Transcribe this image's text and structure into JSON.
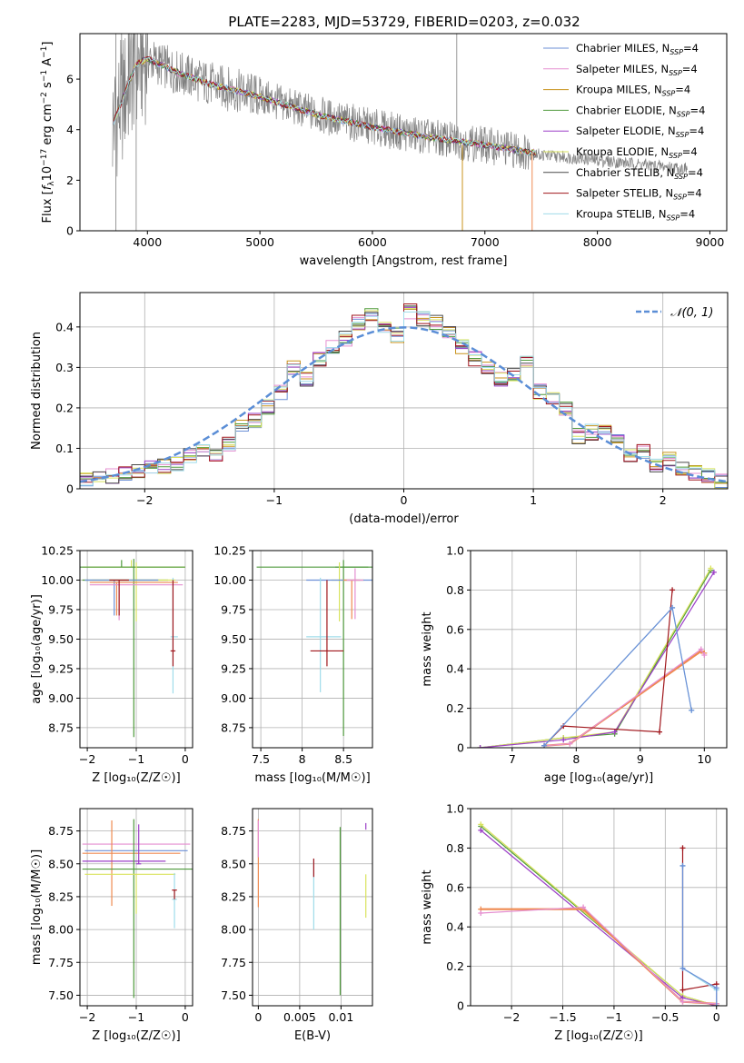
{
  "figure": {
    "title": "PLATE=2283, MJD=53729, FIBERID=0203, z=0.032"
  },
  "colors": {
    "Chabrier MILES": "#6b8fd6",
    "Salpeter MILES": "#e58fd0",
    "Kroupa MILES": "#c8931c",
    "Chabrier ELODIE": "#4f9a3c",
    "Salpeter ELODIE": "#9b3fc7",
    "Kroupa ELODIE": "#d9e35e",
    "Chabrier STELIB": "#4a4a4a",
    "Salpeter STELIB": "#a0161c",
    "Kroupa STELIB": "#9fdcea",
    "data": "#808080",
    "normal": "#5b8ed6",
    "orange_fit": "#ef8a50"
  },
  "chart_data": [
    {
      "id": "spectrum",
      "type": "line",
      "xlabel": "wavelength [Angstrom, rest frame]",
      "ylabel": "Flux [f_λ10⁻¹⁷ erg cm⁻² s⁻¹ A⁻¹]",
      "ylabel_parts": {
        "pre": "Flux [",
        "f": "f",
        "sub": "λ",
        "mid": "10",
        "e1": "−17",
        "erg": " erg cm",
        "e2": "−2",
        "s": " s",
        "e3": "−1",
        "A": " A",
        "e4": "−1",
        "post": "]"
      },
      "xlim": [
        3400,
        9150
      ],
      "ylim": [
        0,
        7.8
      ],
      "xticks": [
        4000,
        5000,
        6000,
        7000,
        8000,
        9000
      ],
      "yticks": [
        0,
        2,
        4,
        6
      ],
      "continuum": {
        "x": [
          3700,
          3900,
          4000,
          4300,
          4600,
          5000,
          5500,
          6000,
          6500,
          7000,
          7400
        ],
        "y": [
          4.3,
          6.6,
          6.8,
          6.2,
          5.75,
          5.3,
          4.6,
          4.1,
          3.7,
          3.4,
          3.1
        ]
      },
      "legend": [
        {
          "label": "Chabrier MILES, N",
          "sub": "SSP",
          "eq": "=4"
        },
        {
          "label": "Salpeter MILES, N",
          "sub": "SSP",
          "eq": "=4"
        },
        {
          "label": "Kroupa MILES, N",
          "sub": "SSP",
          "eq": "=4"
        },
        {
          "label": "Chabrier ELODIE, N",
          "sub": "SSP",
          "eq": "=4"
        },
        {
          "label": "Salpeter ELODIE, N",
          "sub": "SSP",
          "eq": "=4"
        },
        {
          "label": "Kroupa ELODIE, N",
          "sub": "SSP",
          "eq": "=4"
        },
        {
          "label": "Chabrier STELIB, N",
          "sub": "SSP",
          "eq": "=4"
        },
        {
          "label": "Salpeter STELIB, N",
          "sub": "SSP",
          "eq": "=4"
        },
        {
          "label": "Kroupa STELIB, N",
          "sub": "SSP",
          "eq": "=4"
        }
      ],
      "legend_placement": "top-right"
    },
    {
      "id": "residuals",
      "type": "line",
      "xlabel": "(data-model)/error",
      "ylabel": "Normed distribution",
      "xlim": [
        -2.5,
        2.5
      ],
      "ylim": [
        0,
        0.485
      ],
      "xticks": [
        -2,
        -1,
        0,
        1,
        2
      ],
      "yticks": [
        0.0,
        0.1,
        0.2,
        0.3,
        0.4
      ],
      "grid": true,
      "bins": [
        -2.5,
        -2.4,
        -2.3,
        -2.2,
        -2.1,
        -2.0,
        -1.9,
        -1.8,
        -1.7,
        -1.6,
        -1.5,
        -1.4,
        -1.3,
        -1.2,
        -1.1,
        -1.0,
        -0.9,
        -0.8,
        -0.7,
        -0.6,
        -0.5,
        -0.4,
        -0.3,
        -0.2,
        -0.1,
        0.0,
        0.1,
        0.2,
        0.3,
        0.4,
        0.5,
        0.6,
        0.7,
        0.8,
        0.9,
        1.0,
        1.1,
        1.2,
        1.3,
        1.4,
        1.5,
        1.6,
        1.7,
        1.8,
        1.9,
        2.0,
        2.1,
        2.2,
        2.3,
        2.4
      ],
      "hist": [
        0.02,
        0.03,
        0.03,
        0.035,
        0.04,
        0.05,
        0.055,
        0.06,
        0.08,
        0.09,
        0.085,
        0.11,
        0.16,
        0.17,
        0.2,
        0.24,
        0.3,
        0.27,
        0.32,
        0.35,
        0.37,
        0.41,
        0.43,
        0.4,
        0.38,
        0.44,
        0.42,
        0.41,
        0.39,
        0.35,
        0.32,
        0.3,
        0.27,
        0.28,
        0.32,
        0.24,
        0.22,
        0.2,
        0.13,
        0.14,
        0.15,
        0.12,
        0.08,
        0.09,
        0.06,
        0.07,
        0.05,
        0.04,
        0.03,
        0.02
      ],
      "normal_label": "𝒩(0, 1)"
    },
    {
      "id": "age-vs-Z",
      "type": "scatter",
      "xlabel": "Z [log₁₀(Z/Z☉)]",
      "ylabel": "age  [log₁₀(age/yr)]",
      "xlim": [
        -2.15,
        0.15
      ],
      "ylim": [
        8.58,
        10.25
      ],
      "xticks": [
        -2,
        -1,
        0
      ],
      "yticks": [
        8.75,
        9.0,
        9.25,
        9.5,
        9.75,
        10.0,
        10.25
      ]
    },
    {
      "id": "age-vs-mass",
      "type": "scatter",
      "xlabel": "mass [log₁₀(M/M☉)]",
      "ylabel": "",
      "xlim": [
        7.4,
        8.85
      ],
      "ylim": [
        8.58,
        10.25
      ],
      "xticks": [
        7.5,
        8.0,
        8.5
      ],
      "yticks": [
        8.75,
        9.0,
        9.25,
        9.5,
        9.75,
        10.0,
        10.25
      ]
    },
    {
      "id": "weight-vs-age",
      "type": "line",
      "xlabel": "age  [log₁₀(age/yr)]",
      "ylabel": "mass weight",
      "xlim": [
        6.35,
        10.35
      ],
      "ylim": [
        0,
        1.0
      ],
      "xticks": [
        7,
        8,
        9,
        10
      ],
      "yticks": [
        0.0,
        0.2,
        0.4,
        0.6,
        0.8,
        1.0
      ],
      "grid": true,
      "series": [
        {
          "color": "#4f9a3c",
          "x": [
            6.5,
            7.8,
            8.6,
            10.1
          ],
          "y": [
            0.0,
            0.05,
            0.07,
            0.9
          ]
        },
        {
          "color": "#d9e35e",
          "x": [
            6.5,
            7.8,
            8.6,
            10.1
          ],
          "y": [
            0.0,
            0.05,
            0.08,
            0.91
          ]
        },
        {
          "color": "#9b3fc7",
          "x": [
            6.5,
            7.8,
            8.6,
            10.15
          ],
          "y": [
            0.0,
            0.04,
            0.08,
            0.89
          ]
        },
        {
          "color": "#ef8a50",
          "x": [
            7.5,
            7.9,
            9.95,
            10.0
          ],
          "y": [
            0.01,
            0.02,
            0.49,
            0.48
          ]
        },
        {
          "color": "#e58fd0",
          "x": [
            7.5,
            7.9,
            9.95,
            10.0
          ],
          "y": [
            0.01,
            0.02,
            0.5,
            0.47
          ]
        },
        {
          "color": "#a0161c",
          "x": [
            7.5,
            7.8,
            9.3,
            9.5
          ],
          "y": [
            0.01,
            0.11,
            0.08,
            0.8
          ]
        },
        {
          "color": "#9fdcea",
          "x": [
            7.5,
            9.5,
            9.8
          ],
          "y": [
            0.01,
            0.71,
            0.19
          ]
        },
        {
          "color": "#6b8fd6",
          "x": [
            7.5,
            9.5,
            9.8
          ],
          "y": [
            0.01,
            0.71,
            0.19
          ]
        }
      ]
    },
    {
      "id": "mass-vs-Z",
      "type": "scatter",
      "xlabel": "Z [log₁₀(Z/Z☉)]",
      "ylabel": "mass [log₁₀(M/M☉)]",
      "xlim": [
        -2.15,
        0.15
      ],
      "ylim": [
        7.42,
        8.92
      ],
      "xticks": [
        -2,
        -1,
        0
      ],
      "yticks": [
        7.5,
        7.75,
        8.0,
        8.25,
        8.5,
        8.75
      ]
    },
    {
      "id": "mass-vs-EBV",
      "type": "scatter",
      "xlabel": "E(B-V)",
      "ylabel": "",
      "xlim": [
        -0.0007,
        0.0138
      ],
      "ylim": [
        7.42,
        8.92
      ],
      "xticks": [
        0.0,
        0.005,
        0.01
      ],
      "yticks": [
        7.5,
        7.75,
        8.0,
        8.25,
        8.5,
        8.75
      ]
    },
    {
      "id": "weight-vs-Z",
      "type": "line",
      "xlabel": "Z [log₁₀(Z/Z☉)]",
      "ylabel": "mass weight",
      "xlim": [
        -2.4,
        0.1
      ],
      "ylim": [
        0,
        1.0
      ],
      "xticks": [
        -2.0,
        -1.5,
        -1.0,
        -0.5,
        0.0
      ],
      "yticks": [
        0.0,
        0.2,
        0.4,
        0.6,
        0.8,
        1.0
      ],
      "grid": true,
      "series": [
        {
          "color": "#4f9a3c",
          "x": [
            -2.3,
            -0.33,
            0.0
          ],
          "y": [
            0.91,
            0.05,
            0.0
          ]
        },
        {
          "color": "#d9e35e",
          "x": [
            -2.3,
            -0.33,
            0.0
          ],
          "y": [
            0.92,
            0.05,
            0.0
          ]
        },
        {
          "color": "#9b3fc7",
          "x": [
            -2.3,
            -0.33,
            0.0
          ],
          "y": [
            0.89,
            0.04,
            0.0
          ]
        },
        {
          "color": "#ef8a50",
          "x": [
            -2.3,
            -1.3,
            -0.33,
            0.0
          ],
          "y": [
            0.49,
            0.49,
            0.02,
            0.01
          ]
        },
        {
          "color": "#e58fd0",
          "x": [
            -2.3,
            -1.3,
            -0.33,
            0.0
          ],
          "y": [
            0.47,
            0.5,
            0.02,
            0.01
          ]
        },
        {
          "color": "#a0161c",
          "x": [
            -0.33,
            -0.33,
            0.0,
            0.0
          ],
          "y": [
            0.8,
            0.08,
            0.11,
            0.0
          ]
        },
        {
          "color": "#9fdcea",
          "x": [
            -0.33,
            -0.33,
            0.0,
            0.0
          ],
          "y": [
            0.71,
            0.19,
            0.08,
            0.0
          ]
        },
        {
          "color": "#6b8fd6",
          "x": [
            -0.33,
            -0.33,
            0.0,
            0.0
          ],
          "y": [
            0.71,
            0.19,
            0.09,
            0.0
          ]
        }
      ]
    }
  ]
}
